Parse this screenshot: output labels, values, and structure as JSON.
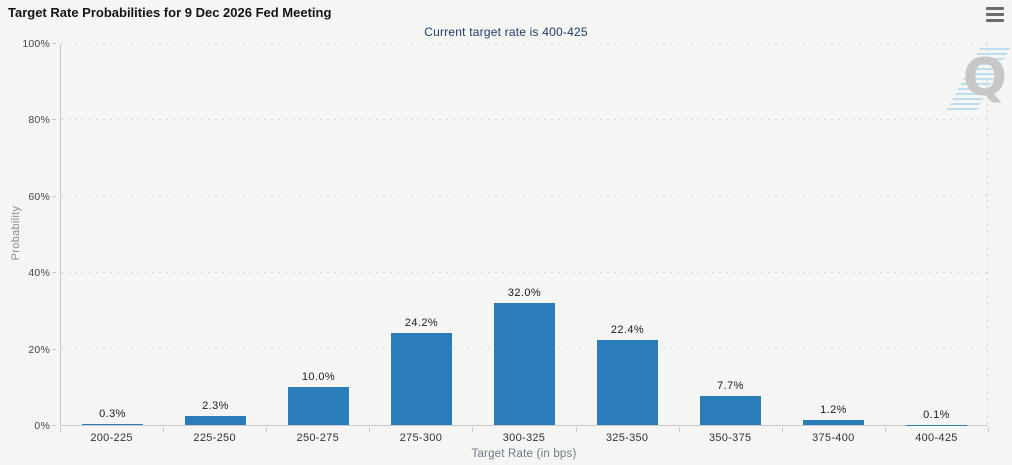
{
  "page": {
    "background_color": "#f5f5f4"
  },
  "header": {
    "menu_icon": "hamburger-menu-icon"
  },
  "watermark": {
    "letter": "Q",
    "stripe_color": "#b3d9ee",
    "letter_color": "#c7c7c7"
  },
  "chart_data": {
    "type": "bar",
    "title": "Target Rate Probabilities for 9 Dec 2026 Fed Meeting",
    "subtitle": "Current target rate is 400-425",
    "categories": [
      "200-225",
      "225-250",
      "250-275",
      "275-300",
      "300-325",
      "325-350",
      "350-375",
      "375-400",
      "400-425"
    ],
    "values": [
      0.3,
      2.3,
      10.0,
      24.2,
      32.0,
      22.4,
      7.7,
      1.2,
      0.1
    ],
    "bar_labels": [
      "0.3%",
      "2.3%",
      "10.0%",
      "24.2%",
      "32.0%",
      "22.4%",
      "7.7%",
      "1.2%",
      "0.1%"
    ],
    "xlabel": "Target Rate (in bps)",
    "ylabel": "Probability",
    "ylim": [
      0,
      100
    ],
    "yticks": [
      {
        "value": 0,
        "label": "0%"
      },
      {
        "value": 20,
        "label": "20%"
      },
      {
        "value": 40,
        "label": "40%"
      },
      {
        "value": 60,
        "label": "60%"
      },
      {
        "value": 80,
        "label": "80%"
      },
      {
        "value": 100,
        "label": "100%"
      }
    ],
    "grid": "horizontal-dotted",
    "legend": "none",
    "bar_color": "#2a7db8",
    "subtitle_color": "#1f3b70"
  }
}
